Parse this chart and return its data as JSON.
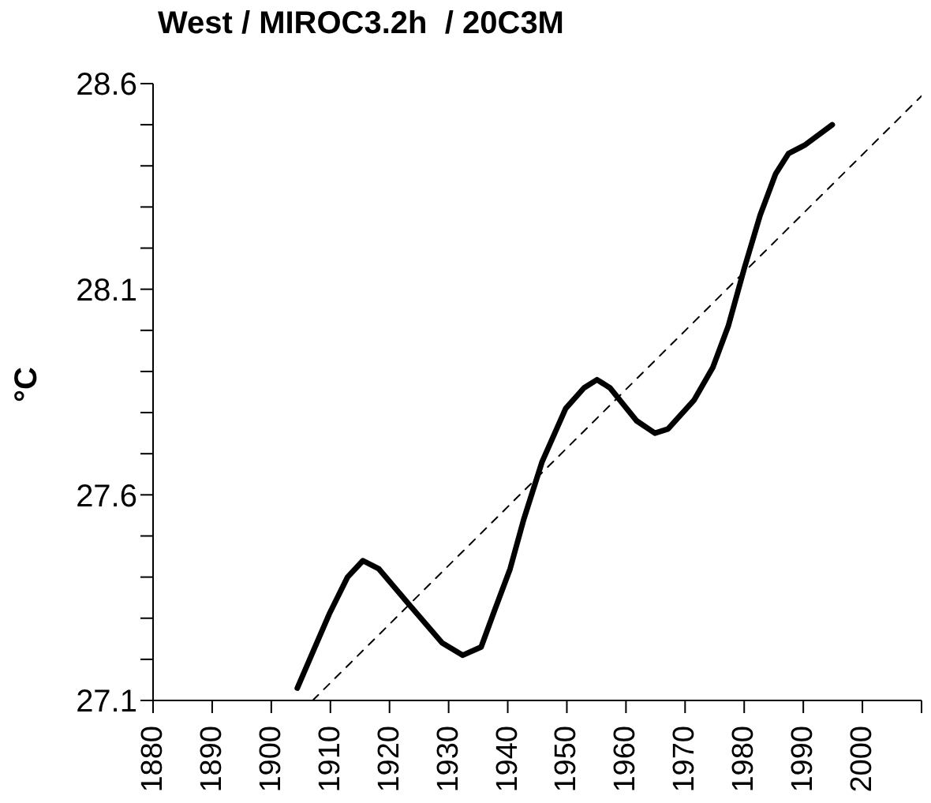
{
  "chart_data": {
    "type": "line",
    "title": "West / MIROC3.2h  / 20C3M",
    "ylabel": "°C",
    "xlim": [
      1880,
      2010
    ],
    "ylim": [
      27.1,
      28.6
    ],
    "xticks": [
      1880,
      1890,
      1900,
      1910,
      1920,
      1930,
      1940,
      1950,
      1960,
      1970,
      1980,
      1990,
      2000,
      {
        "value": 2010,
        "label": null
      }
    ],
    "yticks": [
      27.1,
      {
        "value": 27.2,
        "label": null
      },
      {
        "value": 27.3,
        "label": null
      },
      {
        "value": 27.4,
        "label": null
      },
      {
        "value": 27.5,
        "label": null
      },
      27.6,
      {
        "value": 27.7,
        "label": null
      },
      {
        "value": 27.8,
        "label": null
      },
      {
        "value": 27.9,
        "label": null
      },
      {
        "value": 28.0,
        "label": null
      },
      28.1,
      {
        "value": 28.2,
        "label": null
      },
      {
        "value": 28.3,
        "label": null
      },
      {
        "value": 28.4,
        "label": null
      },
      {
        "value": 28.5,
        "label": null
      },
      28.6
    ],
    "marker": "none",
    "series": [
      {
        "color": "#000000",
        "line_style": "solid",
        "x": [
          1904.4,
          1907.1,
          1909.8,
          1912.9,
          1915.5,
          1918.2,
          1923.5,
          1928.9,
          1932.4,
          1935.5,
          1937.8,
          1940.4,
          1942.7,
          1945.8,
          1949.8,
          1952.9,
          1955.1,
          1957.3,
          1961.8,
          1964.9,
          1967.1,
          1971.5,
          1974.7,
          1977.3,
          1980.0,
          1982.7,
          1985.3,
          1987.5,
          1990.2,
          1994.9
        ],
        "values": [
          27.13,
          27.22,
          27.31,
          27.4,
          27.44,
          27.42,
          27.33,
          27.24,
          27.21,
          27.23,
          27.32,
          27.42,
          27.54,
          27.68,
          27.81,
          27.86,
          27.88,
          27.86,
          27.78,
          27.75,
          27.76,
          27.83,
          27.91,
          28.01,
          28.15,
          28.28,
          28.38,
          28.43,
          28.45,
          28.5
        ]
      },
      {
        "color": "#000000",
        "line_style": "dashed",
        "x": [
          1907,
          2010
        ],
        "values": [
          27.1,
          28.57
        ]
      }
    ]
  }
}
